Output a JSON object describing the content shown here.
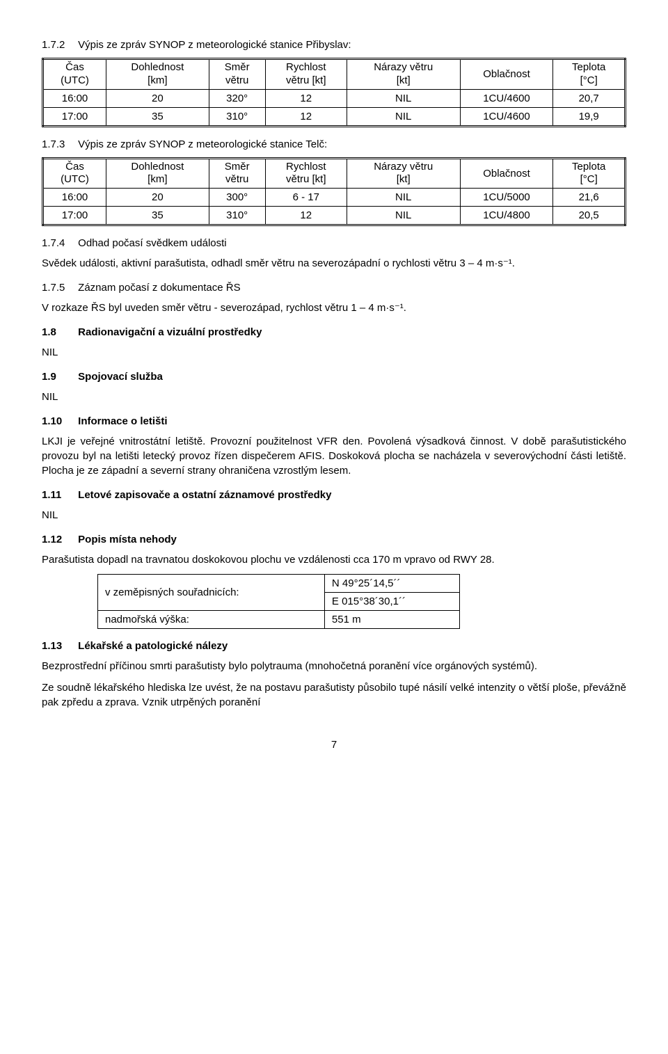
{
  "sec172": {
    "num": "1.7.2",
    "title": "Výpis ze zpráv SYNOP z meteorologické stanice Přibyslav:"
  },
  "table172": {
    "headers": {
      "c1a": "Čas",
      "c1b": "(UTC)",
      "c2a": "Dohlednost",
      "c2b": "[km]",
      "c3a": "Směr",
      "c3b": "větru",
      "c4a": "Rychlost",
      "c4b": "větru [kt]",
      "c5a": "Nárazy větru",
      "c5b": "[kt]",
      "c6": "Oblačnost",
      "c7a": "Teplota",
      "c7b": "[°C]"
    },
    "rows": [
      {
        "c1": "16:00",
        "c2": "20",
        "c3": "320°",
        "c4": "12",
        "c5": "NIL",
        "c6": "1CU/4600",
        "c7": "20,7"
      },
      {
        "c1": "17:00",
        "c2": "35",
        "c3": "310°",
        "c4": "12",
        "c5": "NIL",
        "c6": "1CU/4600",
        "c7": "19,9"
      }
    ]
  },
  "sec173": {
    "num": "1.7.3",
    "title": "Výpis ze zpráv SYNOP z meteorologické stanice Telč:"
  },
  "table173": {
    "rows": [
      {
        "c1": "16:00",
        "c2": "20",
        "c3": "300°",
        "c4": "6 - 17",
        "c5": "NIL",
        "c6": "1CU/5000",
        "c7": "21,6"
      },
      {
        "c1": "17:00",
        "c2": "35",
        "c3": "310°",
        "c4": "12",
        "c5": "NIL",
        "c6": "1CU/4800",
        "c7": "20,5"
      }
    ]
  },
  "sec174": {
    "num": "1.7.4",
    "title": "Odhad počasí svědkem události",
    "p1": "Svědek události, aktivní parašutista, odhadl směr větru na severozápadní o rychlosti větru 3 – 4 m·s⁻¹."
  },
  "sec175": {
    "num": "1.7.5",
    "title": "Záznam počasí z dokumentace ŘS",
    "p1": "V rozkaze ŘS byl uveden směr větru - severozápad, rychlost větru 1 – 4 m·s⁻¹."
  },
  "sec18": {
    "num": "1.8",
    "title": "Radionavigační a vizuální prostředky",
    "nil": "NIL"
  },
  "sec19": {
    "num": "1.9",
    "title": "Spojovací služba",
    "nil": "NIL"
  },
  "sec110": {
    "num": "1.10",
    "title": "Informace o letišti",
    "p1": "LKJI je veřejné vnitrostátní letiště. Provozní použitelnost VFR den. Povolená výsadková činnost. V době parašutistického provozu byl na letišti letecký provoz řízen dispečerem AFIS. Doskoková plocha se nacházela v severovýchodní části letiště. Plocha je ze západní a severní strany ohraničena vzrostlým lesem."
  },
  "sec111": {
    "num": "1.11",
    "title": "Letové zapisovače a ostatní záznamové prostředky",
    "nil": "NIL"
  },
  "sec112": {
    "num": "1.12",
    "title": "Popis místa nehody",
    "p1": "Parašutista dopadl na travnatou doskokovou plochu ve vzdálenosti cca 170 m vpravo od RWY 28."
  },
  "coords": {
    "r1label": "v zeměpisných souřadnicích:",
    "r1a": "N   49°25´14,5´´",
    "r1b": "E 015°38´30,1´´",
    "r2label": "nadmořská výška:",
    "r2val": "551 m"
  },
  "sec113": {
    "num": "1.13",
    "title": "Lékařské a patologické nálezy",
    "p1": "Bezprostřední příčinou smrti parašutisty bylo polytrauma (mnohočetná poranění více orgánových systémů).",
    "p2": "Ze soudně lékařského hlediska lze uvést, že na postavu parašutisty působilo tupé násilí velké intenzity o větší ploše, převážně pak zpředu a zprava. Vznik utrpěných poranění"
  },
  "page": "7"
}
